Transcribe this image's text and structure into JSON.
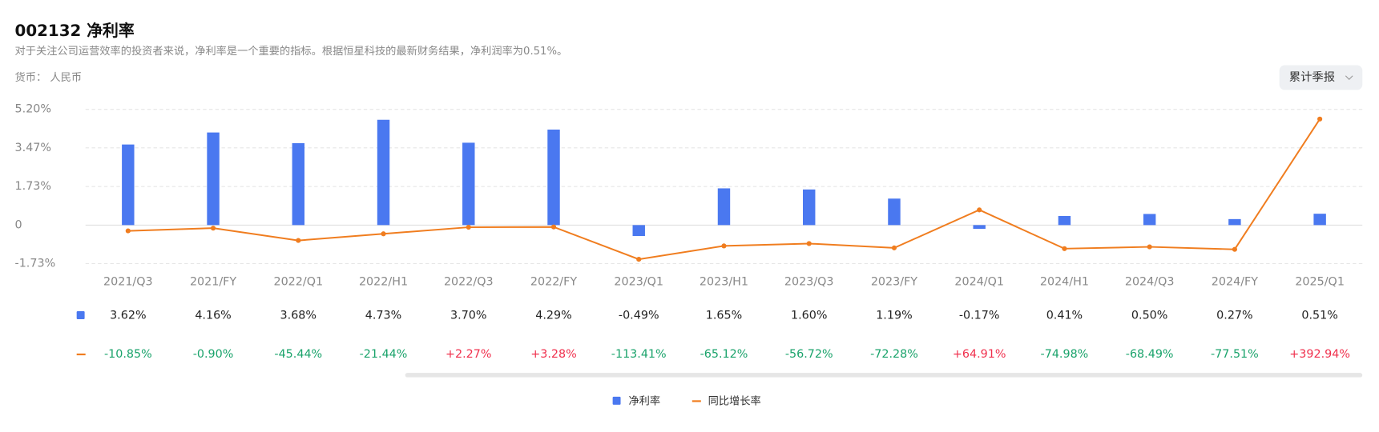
{
  "header": {
    "title": "002132 净利率",
    "subtitle": "对于关注公司运营效率的投资者来说，净利率是一个重要的指标。根据恒星科技的最新财务结果，净利润率为0.51%。",
    "currency": "货币： 人民币"
  },
  "button": {
    "label": "累计季报"
  },
  "chart_data": {
    "type": "bar-line",
    "categories": [
      "2021/Q3",
      "2021/FY",
      "2022/Q1",
      "2022/H1",
      "2022/Q3",
      "2022/FY",
      "2023/Q1",
      "2023/H1",
      "2023/Q3",
      "2023/FY",
      "2024/Q1",
      "2024/H1",
      "2024/Q3",
      "2024/FY",
      "2025/Q1"
    ],
    "series": [
      {
        "name": "净利率",
        "type": "bar",
        "color": "#4a78f0",
        "values": [
          3.62,
          4.16,
          3.68,
          4.73,
          3.7,
          4.29,
          -0.49,
          1.65,
          1.6,
          1.19,
          -0.17,
          0.41,
          0.5,
          0.27,
          0.51
        ],
        "value_labels": [
          "3.62%",
          "4.16%",
          "3.68%",
          "4.73%",
          "3.70%",
          "4.29%",
          "-0.49%",
          "1.65%",
          "1.60%",
          "1.19%",
          "-0.17%",
          "0.41%",
          "0.50%",
          "0.27%",
          "0.51%"
        ]
      },
      {
        "name": "同比增长率",
        "type": "line",
        "axis": "y2",
        "color": "#f07d1f",
        "values": [
          -10.85,
          -0.9,
          -45.44,
          -21.44,
          2.27,
          3.28,
          -113.41,
          -65.12,
          -56.72,
          -72.28,
          64.91,
          -74.98,
          -68.49,
          -77.51,
          392.94
        ],
        "value_labels": [
          "-10.85%",
          "-0.90%",
          "-45.44%",
          "-21.44%",
          "+2.27%",
          "+3.28%",
          "-113.41%",
          "-65.12%",
          "-56.72%",
          "-72.28%",
          "+64.91%",
          "-74.98%",
          "-68.49%",
          "-77.51%",
          "+392.94%"
        ]
      }
    ],
    "ylim": [
      -1.73,
      5.2
    ],
    "yticks": [
      {
        "value": 5.2,
        "label": "5.20%"
      },
      {
        "value": 3.47,
        "label": "3.47%"
      },
      {
        "value": 1.73,
        "label": "1.73%"
      },
      0,
      {
        "value": -1.73,
        "label": "-1.73%"
      }
    ],
    "y2lim": [
      -129,
      428
    ],
    "grid": true,
    "legend": "bottom",
    "positive_color": "#f0304d",
    "negative_color": "#1aa36b"
  }
}
